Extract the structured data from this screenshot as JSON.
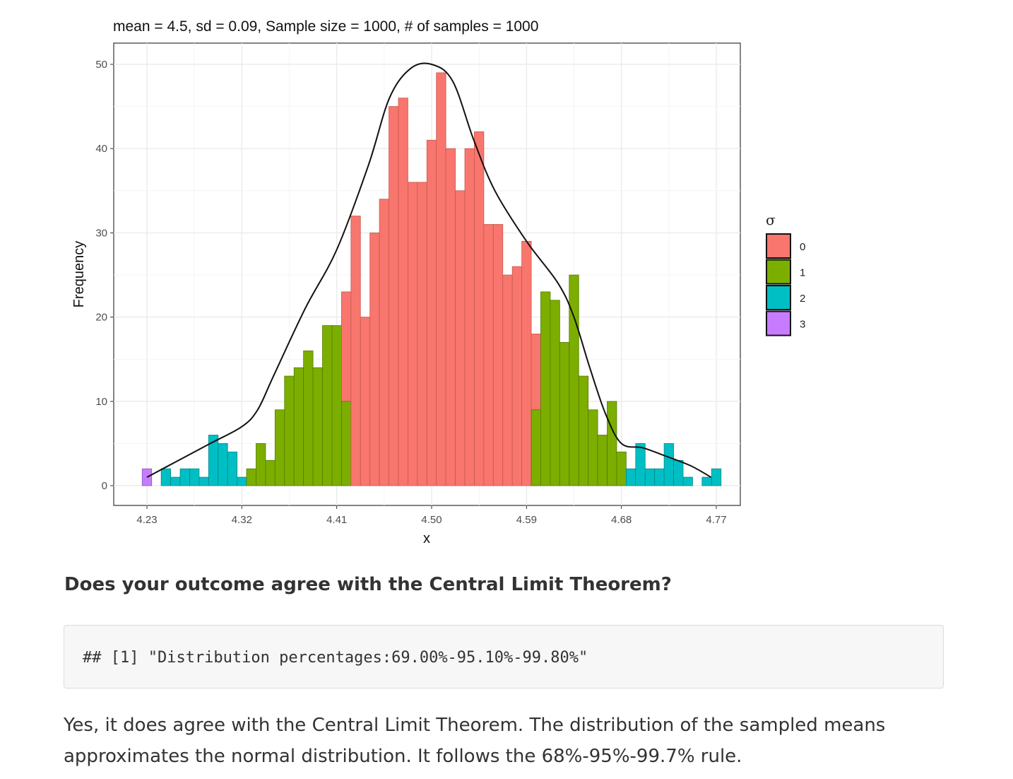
{
  "chart_data": {
    "type": "bar",
    "title": "mean = 4.5, sd = 0.09, Sample size = 1000, # of samples = 1000",
    "xlabel": "x",
    "ylabel": "Frequency",
    "xlim": [
      4.2,
      4.8
    ],
    "ylim": [
      0,
      52
    ],
    "x_ticks": [
      "4.23",
      "4.32",
      "4.41",
      "4.50",
      "4.59",
      "4.68",
      "4.77"
    ],
    "y_ticks": [
      "0",
      "10",
      "20",
      "30",
      "40",
      "50"
    ],
    "grid": true,
    "bin_start": 4.23,
    "bin_width": 0.009,
    "bins": [
      {
        "count": 2,
        "group": "3"
      },
      {
        "count": 0,
        "group": "2"
      },
      {
        "count": 2,
        "group": "2"
      },
      {
        "count": 1,
        "group": "2"
      },
      {
        "count": 2,
        "group": "2"
      },
      {
        "count": 2,
        "group": "2"
      },
      {
        "count": 1,
        "group": "2"
      },
      {
        "count": 6,
        "group": "2"
      },
      {
        "count": 5,
        "group": "2"
      },
      {
        "count": 4,
        "group": "2"
      },
      {
        "count": 1,
        "group": "2"
      },
      {
        "count": 2,
        "group": "1"
      },
      {
        "count": 5,
        "group": "1"
      },
      {
        "count": 3,
        "group": "1"
      },
      {
        "count": 9,
        "group": "1"
      },
      {
        "count": 13,
        "group": "1"
      },
      {
        "count": 14,
        "group": "1"
      },
      {
        "count": 16,
        "group": "1"
      },
      {
        "count": 14,
        "group": "1"
      },
      {
        "count": 19,
        "group": "1"
      },
      {
        "count": 19,
        "group": "1"
      },
      {
        "count": 23,
        "group": "0",
        "under": {
          "count": 10,
          "group": "1"
        }
      },
      {
        "count": 32,
        "group": "0"
      },
      {
        "count": 20,
        "group": "0"
      },
      {
        "count": 30,
        "group": "0"
      },
      {
        "count": 34,
        "group": "0"
      },
      {
        "count": 45,
        "group": "0"
      },
      {
        "count": 46,
        "group": "0"
      },
      {
        "count": 36,
        "group": "0"
      },
      {
        "count": 36,
        "group": "0"
      },
      {
        "count": 41,
        "group": "0"
      },
      {
        "count": 49,
        "group": "0"
      },
      {
        "count": 40,
        "group": "0"
      },
      {
        "count": 35,
        "group": "0"
      },
      {
        "count": 40,
        "group": "0"
      },
      {
        "count": 42,
        "group": "0"
      },
      {
        "count": 31,
        "group": "0"
      },
      {
        "count": 31,
        "group": "0"
      },
      {
        "count": 25,
        "group": "0"
      },
      {
        "count": 26,
        "group": "0"
      },
      {
        "count": 29,
        "group": "0"
      },
      {
        "count": 18,
        "group": "0",
        "under": {
          "count": 9,
          "group": "1"
        }
      },
      {
        "count": 23,
        "group": "1"
      },
      {
        "count": 22,
        "group": "1"
      },
      {
        "count": 17,
        "group": "1"
      },
      {
        "count": 25,
        "group": "1"
      },
      {
        "count": 13,
        "group": "1"
      },
      {
        "count": 9,
        "group": "1"
      },
      {
        "count": 6,
        "group": "1"
      },
      {
        "count": 10,
        "group": "1"
      },
      {
        "count": 4,
        "group": "1"
      },
      {
        "count": 2,
        "group": "2"
      },
      {
        "count": 5,
        "group": "2"
      },
      {
        "count": 2,
        "group": "2"
      },
      {
        "count": 2,
        "group": "2"
      },
      {
        "count": 5,
        "group": "2"
      },
      {
        "count": 3,
        "group": "2"
      },
      {
        "count": 1,
        "group": "2"
      },
      {
        "count": 0,
        "group": "2"
      },
      {
        "count": 1,
        "group": "2"
      },
      {
        "count": 2,
        "group": "2"
      }
    ],
    "density_curve": {
      "x": [
        4.23,
        4.26,
        4.29,
        4.32,
        4.335,
        4.35,
        4.38,
        4.41,
        4.44,
        4.46,
        4.48,
        4.5,
        4.52,
        4.54,
        4.56,
        4.59,
        4.62,
        4.635,
        4.65,
        4.665,
        4.68,
        4.7,
        4.72,
        4.745,
        4.765
      ],
      "y": [
        1,
        3,
        5,
        7,
        9,
        13,
        21,
        28,
        38,
        46,
        49.5,
        50,
        48,
        41,
        35,
        29,
        24,
        20,
        14,
        8.5,
        5,
        4.5,
        3.6,
        2.4,
        1
      ]
    },
    "legend": {
      "title": "σ",
      "position": "right",
      "entries": [
        {
          "label": "0",
          "color": "#F8766D"
        },
        {
          "label": "1",
          "color": "#7CAE00"
        },
        {
          "label": "2",
          "color": "#00BFC4"
        },
        {
          "label": "3",
          "color": "#C77CFF"
        }
      ]
    }
  },
  "question": {
    "heading": "Does your outcome agree with the Central Limit Theorem?"
  },
  "code_output": {
    "text": "## [1] \"Distribution percentages:69.00%-95.10%-99.80%\""
  },
  "answer": {
    "paragraph": "Yes, it does agree with the Central Limit Theorem. The distribution of the sampled means approximates the normal distribution. It follows the 68%-95%-99.7% rule."
  }
}
